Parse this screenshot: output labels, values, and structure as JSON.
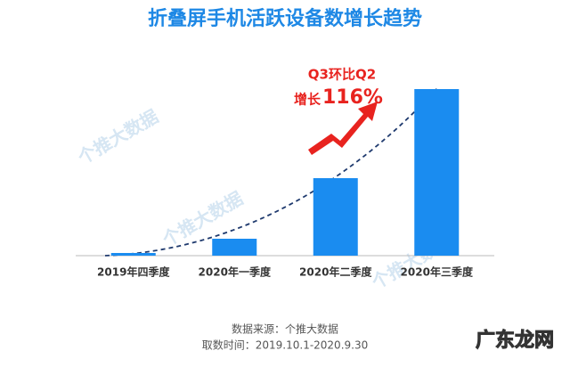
{
  "chart_data": {
    "type": "bar",
    "title": "折叠屏手机活跃设备数增长趋势",
    "categories": [
      "2019年四季度",
      "2020年一季度",
      "2020年二季度",
      "2020年三季度"
    ],
    "values": [
      3,
      19,
      87,
      187
    ],
    "color": "#1a8cf0",
    "annotation": {
      "line1": "Q3环比Q2",
      "line2_prefix": "增长",
      "line2_value": "116%"
    },
    "source": "数据来源：个推大数据",
    "period": "取数时间：2019.10.1-2020.9.30",
    "watermark": "个推大数据",
    "site_mark": "广东龙网"
  }
}
